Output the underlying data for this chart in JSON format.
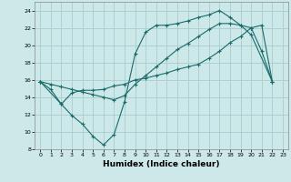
{
  "background_color": "#cce8e8",
  "grid_color": "#aacccc",
  "line_color": "#1a6b6b",
  "xlabel": "Humidex (Indice chaleur)",
  "xlim": [
    -0.5,
    23.5
  ],
  "ylim": [
    8,
    25
  ],
  "yticks": [
    8,
    10,
    12,
    14,
    16,
    18,
    20,
    22,
    24
  ],
  "xticks": [
    0,
    1,
    2,
    3,
    4,
    5,
    6,
    7,
    8,
    9,
    10,
    11,
    12,
    13,
    14,
    15,
    16,
    17,
    18,
    19,
    20,
    21,
    22,
    23
  ],
  "line1_x": [
    0,
    1,
    2,
    3,
    4,
    5,
    6,
    7,
    8,
    9,
    10,
    11,
    12,
    13,
    14,
    15,
    16,
    17,
    18,
    19,
    20,
    22
  ],
  "line1_y": [
    15.8,
    14.9,
    13.2,
    11.9,
    10.9,
    9.5,
    8.5,
    9.7,
    13.5,
    19.0,
    21.5,
    22.3,
    22.3,
    22.5,
    22.8,
    23.2,
    23.5,
    24.0,
    23.2,
    22.3,
    21.2,
    15.8
  ],
  "line2_x": [
    0,
    2,
    3,
    4,
    5,
    6,
    7,
    8,
    9,
    10,
    11,
    12,
    13,
    14,
    15,
    16,
    17,
    18,
    19,
    20,
    21,
    22
  ],
  "line2_y": [
    15.8,
    13.2,
    14.5,
    14.8,
    14.8,
    14.9,
    15.3,
    15.5,
    16.0,
    16.2,
    16.5,
    16.8,
    17.2,
    17.5,
    17.8,
    18.5,
    19.3,
    20.3,
    21.0,
    22.0,
    22.3,
    15.8
  ],
  "line3_x": [
    0,
    1,
    2,
    3,
    4,
    5,
    6,
    7,
    8,
    9,
    10,
    11,
    12,
    13,
    14,
    15,
    16,
    17,
    18,
    19,
    20,
    21,
    22
  ],
  "line3_y": [
    15.8,
    15.5,
    15.2,
    14.9,
    14.6,
    14.3,
    14.0,
    13.7,
    14.2,
    15.5,
    16.5,
    17.5,
    18.5,
    19.5,
    20.2,
    21.0,
    21.8,
    22.5,
    22.5,
    22.3,
    22.0,
    19.3,
    15.8
  ]
}
